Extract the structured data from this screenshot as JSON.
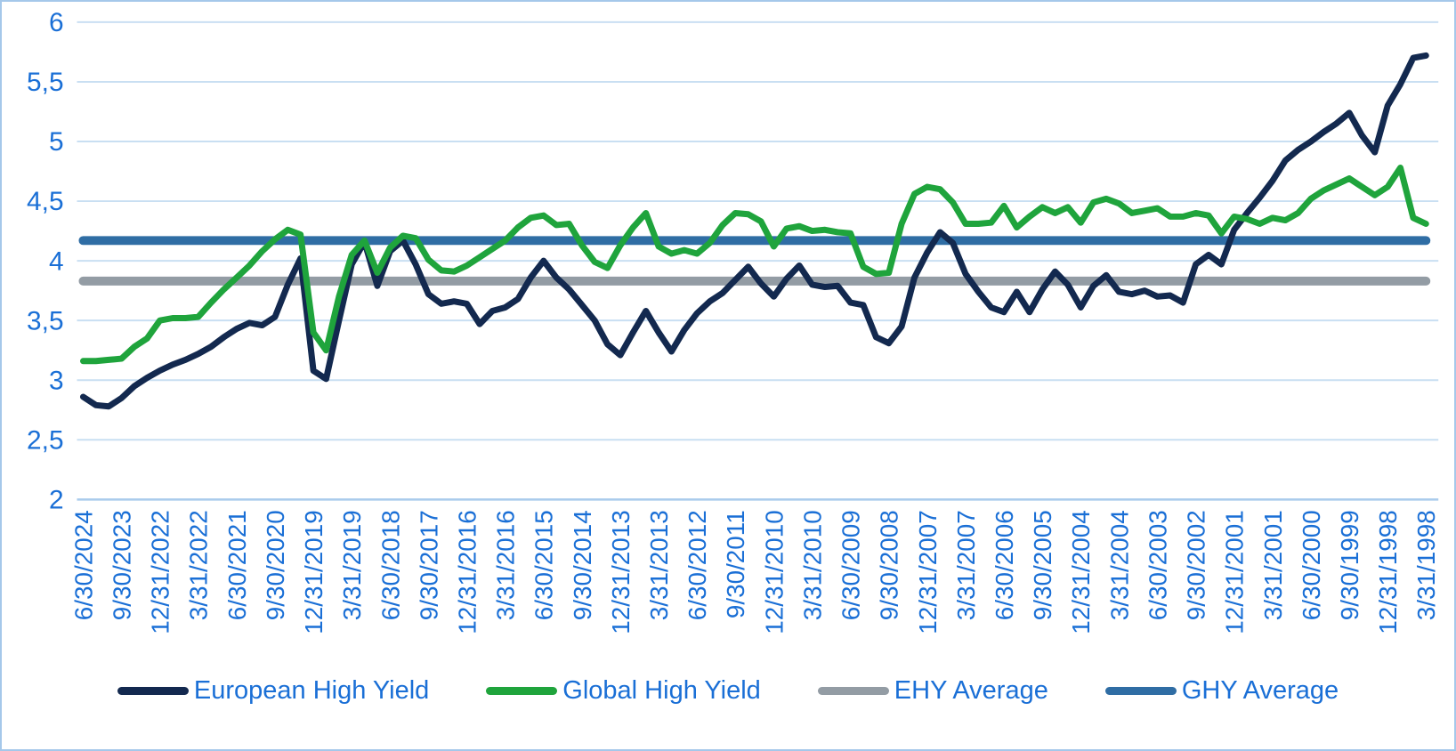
{
  "chart_data": {
    "type": "line",
    "title": "",
    "y_axis": {
      "min": 2,
      "max": 6,
      "step": 0.5,
      "tick_labels": [
        "6",
        "5,5",
        "5",
        "4,5",
        "4",
        "3,5",
        "3",
        "2,5",
        "2"
      ],
      "tick_values": [
        6,
        5.5,
        5,
        4.5,
        4,
        3.5,
        3,
        2.5,
        2
      ]
    },
    "x_axis": {
      "tick_labels": [
        "6/30/2024",
        "9/30/2023",
        "12/31/2022",
        "3/31/2022",
        "6/30/2021",
        "9/30/2020",
        "12/31/2019",
        "3/31/2019",
        "6/30/2018",
        "9/30/2017",
        "12/31/2016",
        "3/31/2016",
        "6/30/2015",
        "9/30/2014",
        "12/31/2013",
        "3/31/2013",
        "6/30/2012",
        "9/30/2011",
        "12/31/2010",
        "3/31/2010",
        "6/30/2009",
        "9/30/2008",
        "12/31/2007",
        "3/31/2007",
        "6/30/2006",
        "9/30/2005",
        "12/31/2004",
        "3/31/2004",
        "6/30/2003",
        "9/30/2002",
        "12/31/2001",
        "3/31/2001",
        "6/30/2000",
        "9/30/1999",
        "12/31/1998",
        "3/31/1998"
      ],
      "points_per_label": 3,
      "label_rotation_degrees": 90
    },
    "grid": true,
    "legend_position": "bottom",
    "series": [
      {
        "name": "European High Yield",
        "kind": "line",
        "color": "#13294F",
        "values": [
          2.86,
          2.79,
          2.78,
          2.85,
          2.95,
          3.02,
          3.08,
          3.13,
          3.17,
          3.22,
          3.28,
          3.36,
          3.43,
          3.48,
          3.46,
          3.53,
          3.8,
          4.02,
          3.08,
          3.01,
          3.5,
          3.97,
          4.16,
          3.79,
          4.08,
          4.17,
          3.97,
          3.72,
          3.64,
          3.66,
          3.64,
          3.47,
          3.58,
          3.61,
          3.68,
          3.86,
          4.0,
          3.86,
          3.76,
          3.63,
          3.5,
          3.3,
          3.21,
          3.4,
          3.58,
          3.4,
          3.24,
          3.42,
          3.56,
          3.66,
          3.73,
          3.84,
          3.95,
          3.81,
          3.7,
          3.85,
          3.96,
          3.8,
          3.78,
          3.79,
          3.65,
          3.63,
          3.36,
          3.31,
          3.45,
          3.86,
          4.07,
          4.24,
          4.15,
          3.89,
          3.74,
          3.61,
          3.57,
          3.74,
          3.57,
          3.76,
          3.91,
          3.8,
          3.61,
          3.79,
          3.88,
          3.74,
          3.72,
          3.75,
          3.7,
          3.71,
          3.65,
          3.97,
          4.05,
          3.97,
          4.26,
          4.4,
          4.53,
          4.67,
          4.84,
          4.93,
          5.0,
          5.08,
          5.15,
          5.24,
          5.05,
          4.91,
          5.3,
          5.48,
          5.7,
          5.72
        ]
      },
      {
        "name": "Global High Yield",
        "kind": "line",
        "color": "#1FA43C",
        "values": [
          3.16,
          3.16,
          3.17,
          3.18,
          3.28,
          3.35,
          3.5,
          3.52,
          3.52,
          3.53,
          3.65,
          3.76,
          3.86,
          3.96,
          4.08,
          4.18,
          4.26,
          4.22,
          3.4,
          3.25,
          3.7,
          4.05,
          4.17,
          3.9,
          4.11,
          4.21,
          4.19,
          4.01,
          3.92,
          3.91,
          3.96,
          4.03,
          4.1,
          4.17,
          4.28,
          4.36,
          4.38,
          4.3,
          4.31,
          4.13,
          3.99,
          3.94,
          4.13,
          4.28,
          4.4,
          4.12,
          4.06,
          4.09,
          4.06,
          4.15,
          4.3,
          4.4,
          4.39,
          4.33,
          4.12,
          4.27,
          4.29,
          4.25,
          4.26,
          4.24,
          4.23,
          3.95,
          3.89,
          3.9,
          4.31,
          4.56,
          4.62,
          4.6,
          4.49,
          4.31,
          4.31,
          4.32,
          4.46,
          4.28,
          4.37,
          4.45,
          4.4,
          4.45,
          4.32,
          4.49,
          4.52,
          4.48,
          4.4,
          4.42,
          4.44,
          4.37,
          4.37,
          4.4,
          4.38,
          4.23,
          4.37,
          4.35,
          4.31,
          4.36,
          4.34,
          4.4,
          4.52,
          4.59,
          4.64,
          4.69,
          4.62,
          4.55,
          4.62,
          4.78,
          4.36,
          4.31
        ]
      },
      {
        "name": "EHY Average",
        "kind": "constant-line",
        "color": "#939CA4",
        "value": 3.83
      },
      {
        "name": "GHY Average",
        "kind": "constant-line",
        "color": "#2F6DA4",
        "value": 4.17
      }
    ]
  },
  "colors": {
    "axis_text": "#1A6FD6",
    "gridline": "#C9DFF2",
    "axis_line": "#A9CBEC",
    "border": "#A5C8EA",
    "background": "#FFFFFF"
  }
}
